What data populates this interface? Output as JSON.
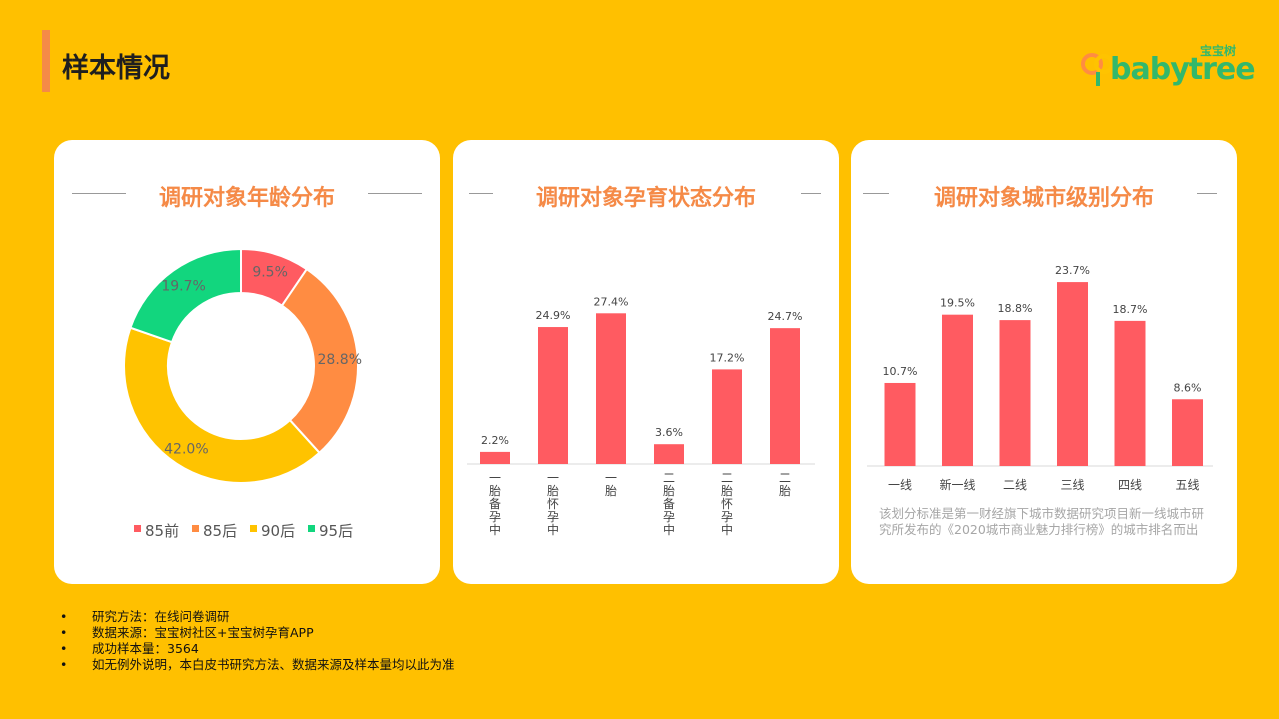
{
  "page": {
    "title": "样本情况"
  },
  "logo": {
    "text": "babytree",
    "cn_text": "宝宝树"
  },
  "cards": [
    {
      "title": "调研对象年龄分布"
    },
    {
      "title": "调研对象孕育状态分布"
    },
    {
      "title": "调研对象城市级别分布",
      "note": "该划分标准是第一财经旗下城市数据研究项目新一线城市研究所发布的《2020城市商业魅力排行榜》的城市排名而出"
    }
  ],
  "bullets": [
    "研究方法：在线问卷调研",
    "数据来源：宝宝树社区+宝宝树孕育APP",
    "成功样本量：3564",
    "如无例外说明，本白皮书研究方法、数据来源及样本量均以此为准"
  ],
  "bullet_symbol": "•",
  "chart_data": [
    {
      "type": "pie",
      "title": "调研对象年龄分布",
      "categories": [
        "85前",
        "85后",
        "90后",
        "95后"
      ],
      "values": [
        9.5,
        28.8,
        42.0,
        19.7
      ],
      "labels": [
        "9.5%",
        "28.8%",
        "42.0%",
        "19.7%"
      ],
      "colors": [
        "#FF5B61",
        "#FF8C42",
        "#FFC300",
        "#12D67E"
      ],
      "legend_position": "bottom",
      "donut": true
    },
    {
      "type": "bar",
      "title": "调研对象孕育状态分布",
      "categories": [
        "一胎备孕中",
        "一胎怀孕中",
        "一胎",
        "二胎备孕中",
        "二胎怀孕中",
        "二胎"
      ],
      "values": [
        2.2,
        24.9,
        27.4,
        3.6,
        17.2,
        24.7
      ],
      "labels": [
        "2.2%",
        "24.9%",
        "27.4%",
        "3.6%",
        "17.2%",
        "24.7%"
      ],
      "color": "#FF5B61",
      "ylim": [
        0,
        30
      ]
    },
    {
      "type": "bar",
      "title": "调研对象城市级别分布",
      "categories": [
        "一线",
        "新一线",
        "二线",
        "三线",
        "四线",
        "五线"
      ],
      "values": [
        10.7,
        19.5,
        18.8,
        23.7,
        18.7,
        8.6
      ],
      "labels": [
        "10.7%",
        "19.5%",
        "18.8%",
        "23.7%",
        "18.7%",
        "8.6%"
      ],
      "color": "#FF5B61",
      "ylim": [
        0,
        25
      ]
    }
  ]
}
